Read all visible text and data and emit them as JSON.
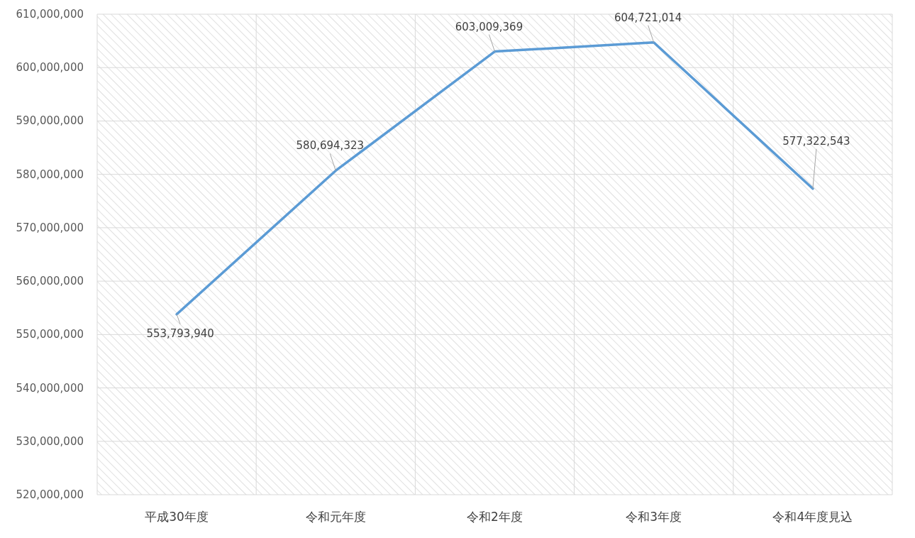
{
  "chart_data": {
    "type": "line",
    "categories": [
      "平成30年度",
      "令和元年度",
      "令和2年度",
      "令和3年度",
      "令和4年度見込"
    ],
    "series": [
      {
        "color": "#5b9bd5",
        "values": [
          553793940,
          580694323,
          603009369,
          604721014,
          577322543
        ],
        "value_labels": [
          "553,793,940",
          "580,694,323",
          "603,009,369",
          "604,721,014",
          "577,322,543"
        ]
      }
    ],
    "ylim": [
      520000000,
      610000000
    ],
    "yticks": [
      {
        "value": 520000000,
        "label": "520,000,000"
      },
      {
        "value": 530000000,
        "label": "530,000,000"
      },
      {
        "value": 540000000,
        "label": "540,000,000"
      },
      {
        "value": 550000000,
        "label": "550,000,000"
      },
      {
        "value": 560000000,
        "label": "560,000,000"
      },
      {
        "value": 570000000,
        "label": "570,000,000"
      },
      {
        "value": 580000000,
        "label": "580,000,000"
      },
      {
        "value": 590000000,
        "label": "590,000,000"
      },
      {
        "value": 600000000,
        "label": "600,000,000"
      },
      {
        "value": 610000000,
        "label": "610,000,000"
      }
    ],
    "grid": true
  }
}
